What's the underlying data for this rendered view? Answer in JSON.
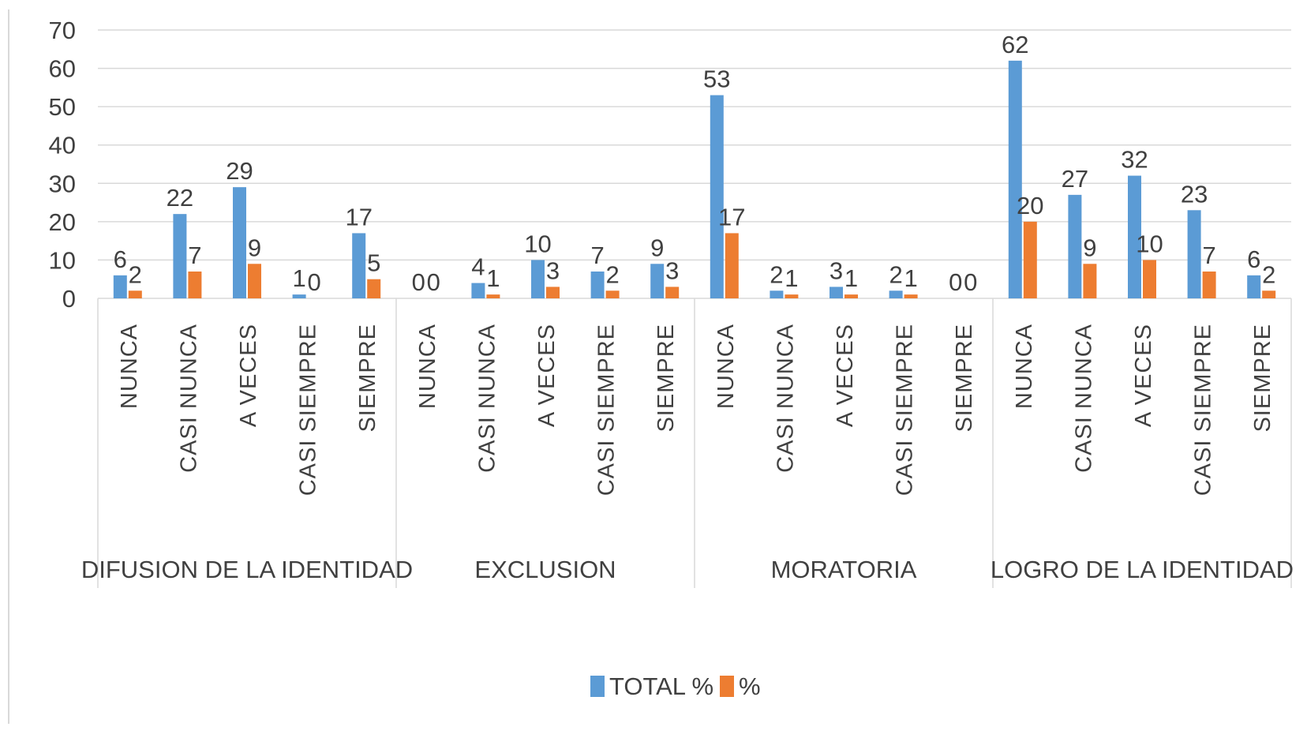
{
  "colors": {
    "series_total": "#5b9bd5",
    "series_pct": "#ed7d31",
    "gridline": "#d9d9d9",
    "text": "#404040",
    "background": "#ffffff"
  },
  "chart_data": {
    "type": "bar",
    "title": "",
    "xlabel": "",
    "ylabel": "",
    "ylim": [
      0,
      70
    ],
    "yticks": [
      0,
      10,
      20,
      30,
      40,
      50,
      60,
      70
    ],
    "grid": true,
    "legend_position": "bottom-center",
    "groups": [
      "DIFUSION DE LA IDENTIDAD",
      "EXCLUSION",
      "MORATORIA",
      "LOGRO DE LA IDENTIDAD"
    ],
    "categories": [
      "NUNCA",
      "CASI NUNCA",
      "A VECES",
      "CASI SIEMPRE",
      "SIEMPRE",
      "NUNCA",
      "CASI NUNCA",
      "A VECES",
      "CASI SIEMPRE",
      "SIEMPRE",
      "NUNCA",
      "CASI NUNCA",
      "A VECES",
      "CASI SIEMPRE",
      "SIEMPRE",
      "NUNCA",
      "CASI NUNCA",
      "A VECES",
      "CASI SIEMPRE",
      "SIEMPRE"
    ],
    "series": [
      {
        "name": "TOTAL %",
        "values": [
          6,
          22,
          29,
          1,
          17,
          0,
          4,
          10,
          7,
          9,
          53,
          2,
          3,
          2,
          0,
          62,
          27,
          32,
          23,
          6
        ]
      },
      {
        "name": "%",
        "values": [
          2,
          7,
          9,
          0,
          5,
          0,
          1,
          3,
          2,
          3,
          17,
          1,
          1,
          1,
          0,
          20,
          9,
          10,
          7,
          2
        ]
      }
    ]
  }
}
